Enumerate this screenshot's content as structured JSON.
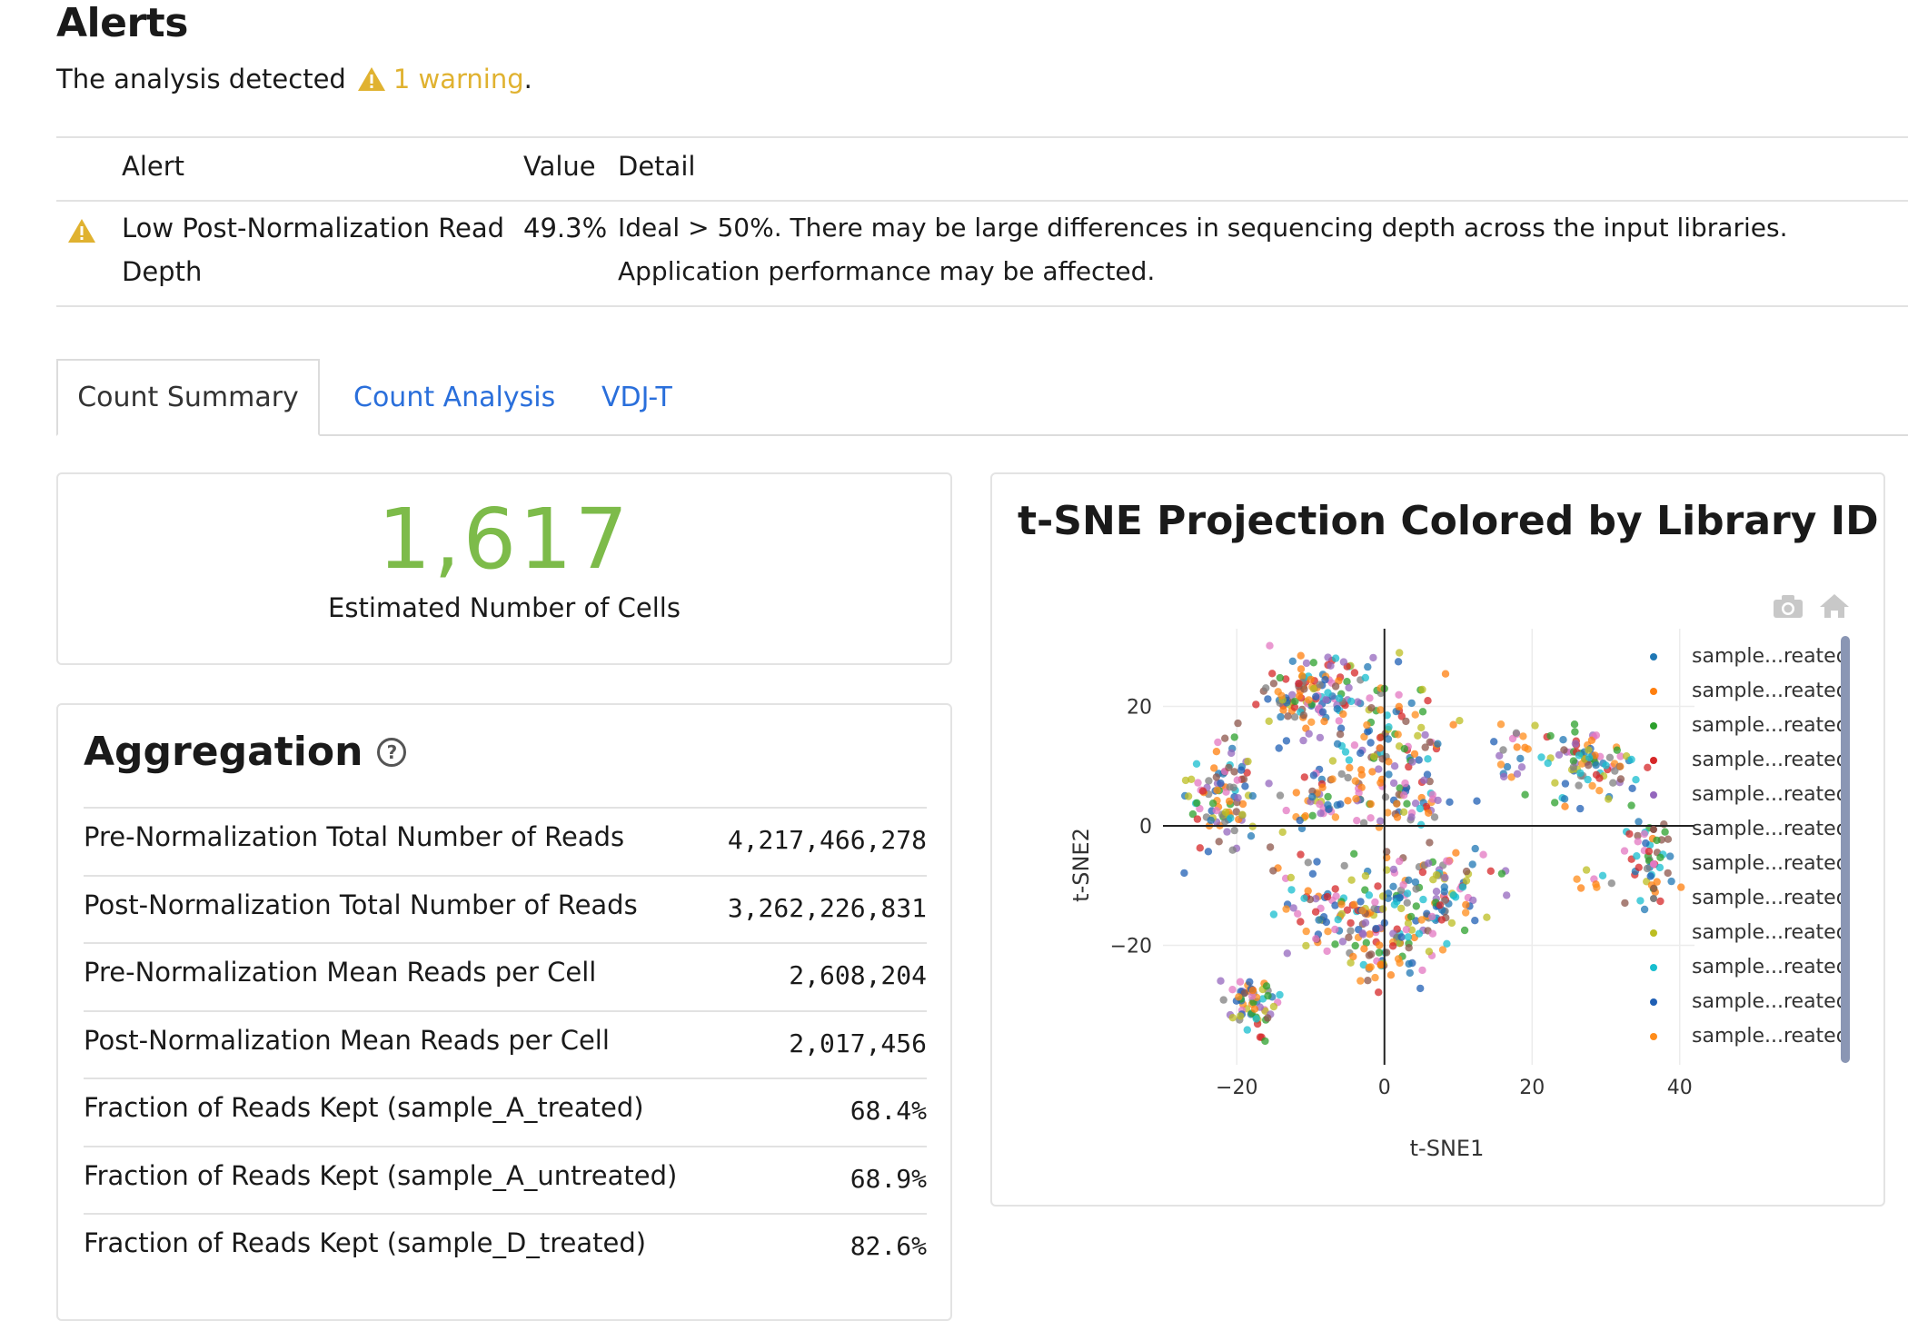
{
  "alerts": {
    "title": "Alerts",
    "subtitle_prefix": "The analysis detected",
    "warning_link": "1 warning",
    "subtitle_suffix": ".",
    "columns": {
      "alert": "Alert",
      "value": "Value",
      "detail": "Detail"
    },
    "rows": [
      {
        "alert_line1": "Low Post-Normalization Read",
        "alert_line2": "Depth",
        "value": "49.3%",
        "detail_line1": "Ideal > 50%. There may be large differences in sequencing depth across the input libraries.",
        "detail_line2": "Application performance may be affected."
      }
    ],
    "warning_color": "#e0b230"
  },
  "tabs": [
    {
      "label": "Count Summary",
      "active": true
    },
    {
      "label": "Count Analysis",
      "active": false
    },
    {
      "label": "VDJ-T",
      "active": false
    }
  ],
  "cells_card": {
    "value": "1,617",
    "label": "Estimated Number of Cells",
    "accent": "#7dbb4a"
  },
  "aggregation": {
    "title": "Aggregation",
    "rows": [
      {
        "label": "Pre-Normalization Total Number of Reads",
        "value": "4,217,466,278"
      },
      {
        "label": "Post-Normalization Total Number of Reads",
        "value": "3,262,226,831"
      },
      {
        "label": "Pre-Normalization Mean Reads per Cell",
        "value": "2,608,204"
      },
      {
        "label": "Post-Normalization Mean Reads per Cell",
        "value": "2,017,456"
      },
      {
        "label": "Fraction of Reads Kept (sample_A_treated)",
        "value": "68.4%"
      },
      {
        "label": "Fraction of Reads Kept (sample_A_untreated)",
        "value": "68.9%"
      },
      {
        "label": "Fraction of Reads Kept (sample_D_treated)",
        "value": "82.6%"
      }
    ]
  },
  "chart_data": {
    "type": "scatter",
    "title": "t-SNE Projection Colored by Library ID",
    "xlabel": "t-SNE1",
    "ylabel": "t-SNE2",
    "xlim": [
      -30,
      42
    ],
    "ylim": [
      -40,
      33
    ],
    "xticks": [
      -20,
      0,
      20,
      40
    ],
    "yticks": [
      -20,
      0,
      20
    ],
    "xtick_labels": [
      "−20",
      "0",
      "20",
      "40"
    ],
    "ytick_labels": [
      "−20",
      "0",
      "20"
    ],
    "grid": true,
    "legend_position": "right",
    "legend_entries": [
      "sample...reated",
      "sample...reated",
      "sample...reated",
      "sample...reated",
      "sample...reated",
      "sample...reated",
      "sample...reated",
      "sample...reated",
      "sample...reated",
      "sample...reated",
      "sample...reated",
      "sample...reated"
    ],
    "colors": [
      "#1f77b4",
      "#ff7f0e",
      "#2ca02c",
      "#d62728",
      "#9467bd",
      "#8c564b",
      "#e377c2",
      "#7f7f7f",
      "#bcbd22",
      "#17becf",
      "#1f5fb4",
      "#ff8c1a"
    ],
    "clusters": [
      {
        "cx": -10,
        "cy": 22,
        "sx": 4.5,
        "sy": 4,
        "n": 120
      },
      {
        "cx": -22,
        "cy": 6,
        "sx": 3,
        "sy": 6,
        "n": 100
      },
      {
        "cx": 0,
        "cy": 14,
        "sx": 5,
        "sy": 7,
        "n": 110
      },
      {
        "cx": -8,
        "cy": 5,
        "sx": 4,
        "sy": 3,
        "n": 50
      },
      {
        "cx": 4,
        "cy": 4,
        "sx": 4,
        "sy": 3,
        "n": 40
      },
      {
        "cx": -5,
        "cy": -15,
        "sx": 6,
        "sy": 5,
        "n": 120
      },
      {
        "cx": 7,
        "cy": -12,
        "sx": 5,
        "sy": 5,
        "n": 110
      },
      {
        "cx": 0,
        "cy": -22,
        "sx": 3,
        "sy": 3,
        "n": 40
      },
      {
        "cx": -18,
        "cy": -30,
        "sx": 2,
        "sy": 3,
        "n": 60
      },
      {
        "cx": 28,
        "cy": 10,
        "sx": 4,
        "sy": 4,
        "n": 90
      },
      {
        "cx": 18,
        "cy": 12,
        "sx": 2,
        "sy": 3,
        "n": 20
      },
      {
        "cx": 36,
        "cy": -6,
        "sx": 2,
        "sy": 5,
        "n": 50
      },
      {
        "cx": 28,
        "cy": -8,
        "sx": 1.5,
        "sy": 2,
        "n": 8
      }
    ]
  }
}
